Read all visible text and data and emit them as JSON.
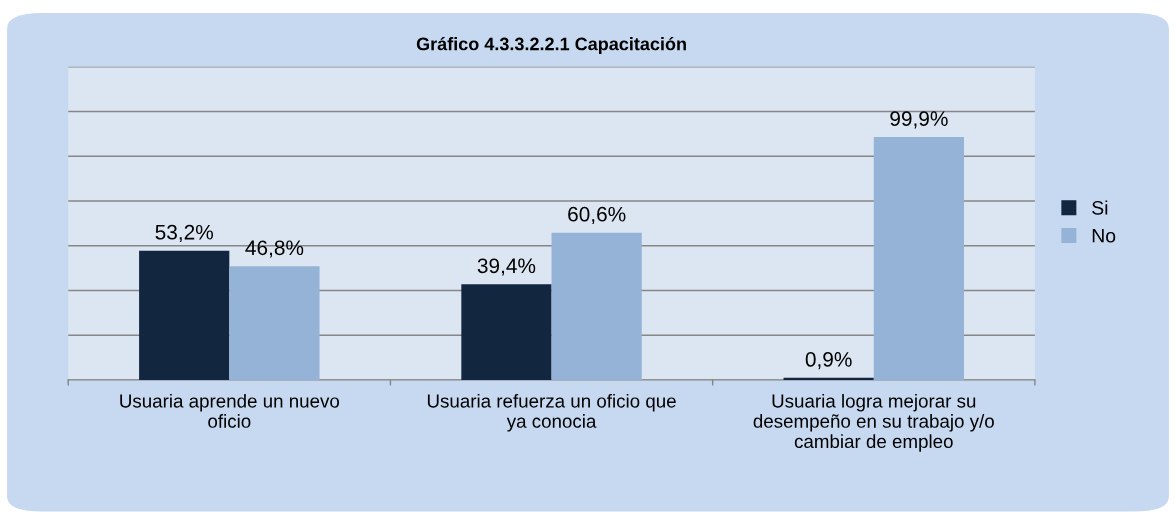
{
  "chart_data": {
    "type": "bar",
    "title": "Gráfico 4.3.3.2.2.1 Capacitación",
    "categories": [
      "Usuaria aprende un nuevo oficio",
      "Usuaria refuerza un oficio que ya conocia",
      "Usuaria logra mejorar su desempeño en su trabajo y/o cambiar de empleo"
    ],
    "series": [
      {
        "name": "Si",
        "color": "#12263f",
        "values": [
          53.2,
          39.4,
          0.9
        ],
        "value_labels": [
          "53,2%",
          "39,4%",
          "0,9%"
        ]
      },
      {
        "name": "No",
        "color": "#95b3d7",
        "values": [
          46.8,
          60.6,
          99.9
        ],
        "value_labels": [
          "46,8%",
          "60,6%",
          "99,9%"
        ]
      }
    ],
    "ylim": [
      0,
      128.8
    ],
    "yticks": [
      {
        "value": 0,
        "label": null
      },
      {
        "value": 18.4,
        "label": null
      },
      {
        "value": 36.8,
        "label": null
      },
      {
        "value": 55.2,
        "label": null
      },
      {
        "value": 73.6,
        "label": null
      },
      {
        "value": 92,
        "label": null
      },
      {
        "value": 110.4,
        "label": null
      },
      {
        "value": 128.8,
        "label": null
      }
    ],
    "tick_labels": "x",
    "grid": "y",
    "legend": "right"
  }
}
